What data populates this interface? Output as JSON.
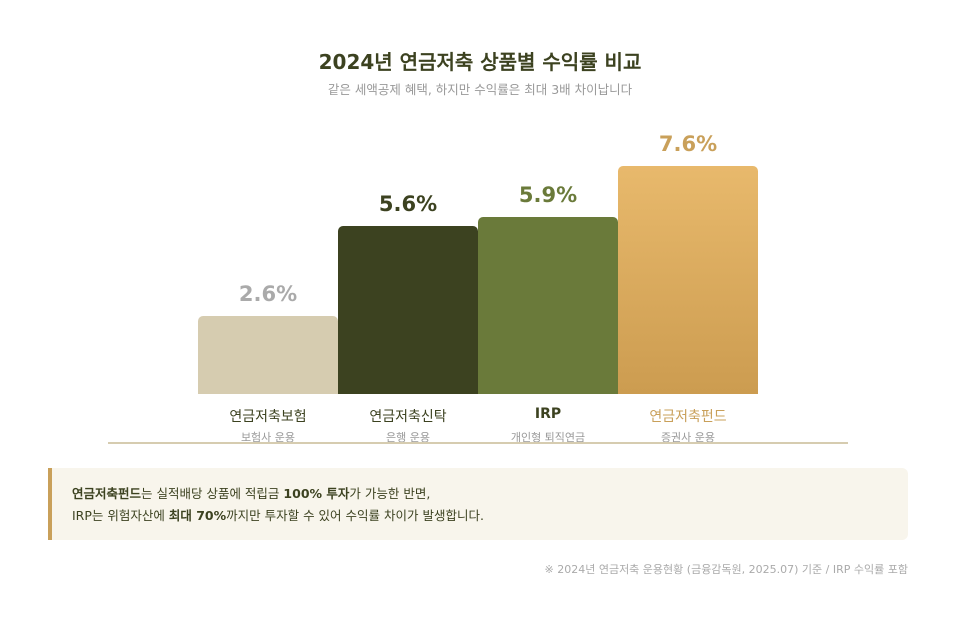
{
  "chart_data": {
    "type": "bar",
    "title": "2024년 연금저축 상품별 수익률 비교",
    "subtitle": "같은 세액공제 혜택, 하지만 수익률은 최대 3배 차이납니다",
    "categories": [
      "연금저축보험",
      "연금저축신탁",
      "IRP",
      "연금저축펀드"
    ],
    "subcategories": [
      "보험사 운용",
      "은행 운용",
      "개인형 퇴직연금",
      "증권사 운용"
    ],
    "values": [
      2.6,
      5.6,
      5.9,
      7.6
    ],
    "value_labels": [
      "2.6%",
      "5.6%",
      "5.9%",
      "7.6%"
    ],
    "unit": "%",
    "ylim": [
      0,
      8
    ],
    "grid": false,
    "colors": [
      "#d6ccb0",
      "#3c4220",
      "#6a7a3a",
      "#e0ad62"
    ],
    "label_colors": [
      "#aaaaaa",
      "#3c4220",
      "#6a7a3a",
      "#c9a05a"
    ]
  },
  "note": {
    "line1": {
      "b1": "연금저축펀드",
      "t1": "는 실적배당 상품에 적립금 ",
      "b2": "100% 투자",
      "t2": "가 가능한 반면,"
    },
    "line2": {
      "t0": "IRP는 위험자산에 ",
      "b1": "최대 70%",
      "t1": "까지만 투자할 수 있어 수익률 차이가 발생합니다."
    }
  },
  "source": "※ 2024년 연금저축 운용현황 (금융감독원, 2025.07) 기준 / IRP 수익률 포함"
}
